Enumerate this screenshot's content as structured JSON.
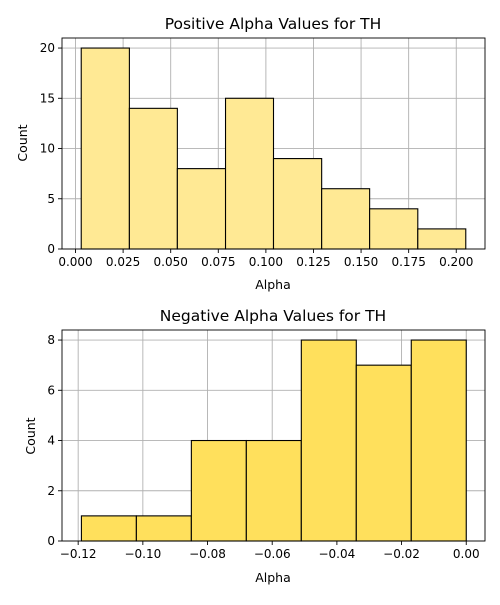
{
  "figure": {
    "bar_edge_color": "#000000",
    "grid_color": "#b0b0b0",
    "background": "#ffffff"
  },
  "chart_data": [
    {
      "type": "bar",
      "subtype": "histogram",
      "title": "Positive Alpha Values for TH",
      "xlabel": "Alpha",
      "ylabel": "Count",
      "bar_color": "#ffe994",
      "bin_edges": [
        0.003,
        0.0283,
        0.0535,
        0.0788,
        0.104,
        0.1293,
        0.1545,
        0.1798,
        0.205
      ],
      "values": [
        20,
        14,
        8,
        15,
        9,
        6,
        4,
        2
      ],
      "xlim": [
        -0.0071,
        0.2151
      ],
      "ylim": [
        0,
        21
      ],
      "xticks": [
        0.0,
        0.025,
        0.05,
        0.075,
        0.1,
        0.125,
        0.15,
        0.175,
        0.2
      ],
      "xtick_labels": [
        "0.000",
        "0.025",
        "0.050",
        "0.075",
        "0.100",
        "0.125",
        "0.150",
        "0.175",
        "0.200"
      ],
      "yticks": [
        0,
        5,
        10,
        15,
        20
      ],
      "ytick_labels": [
        "0",
        "5",
        "10",
        "15",
        "20"
      ],
      "grid": true,
      "legend": "none"
    },
    {
      "type": "bar",
      "subtype": "histogram",
      "title": "Negative Alpha Values for TH",
      "xlabel": "Alpha",
      "ylabel": "Count",
      "bar_color": "#ffe05c",
      "bin_edges": [
        -0.119,
        -0.102,
        -0.085,
        -0.068,
        -0.051,
        -0.034,
        -0.017,
        0.0
      ],
      "values": [
        1,
        1,
        4,
        4,
        8,
        7,
        8
      ],
      "xlim": [
        -0.125,
        0.0058
      ],
      "ylim": [
        0,
        8.4
      ],
      "xticks": [
        -0.12,
        -0.1,
        -0.08,
        -0.06,
        -0.04,
        -0.02,
        0.0
      ],
      "xtick_labels": [
        "−0.12",
        "−0.10",
        "−0.08",
        "−0.06",
        "−0.04",
        "−0.02",
        "0.00"
      ],
      "yticks": [
        0,
        2,
        4,
        6,
        8
      ],
      "ytick_labels": [
        "0",
        "2",
        "4",
        "6",
        "8"
      ],
      "grid": true,
      "legend": "none"
    }
  ]
}
